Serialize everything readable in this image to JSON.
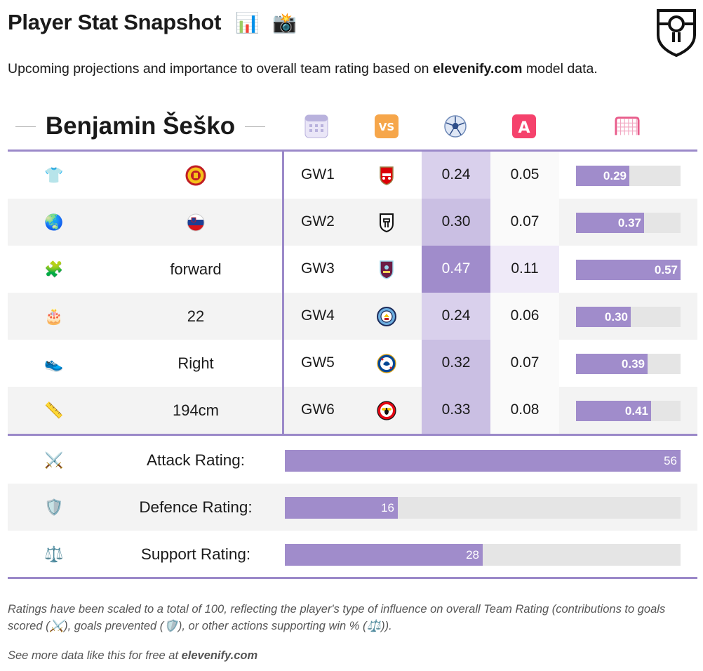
{
  "header": {
    "title": "Player Stat Snapshot",
    "title_emoji_1": "📊",
    "title_emoji_2": "📸",
    "subtitle_before": "Upcoming projections and importance to overall team rating based on ",
    "subtitle_site": "elevenify.com",
    "subtitle_after": " model data."
  },
  "player": {
    "name": "Benjamin Šeško"
  },
  "column_icons": [
    "calendar-icon",
    "versus-icon",
    "football-icon",
    "assist-icon",
    "goal-net-icon"
  ],
  "bio": [
    {
      "icon": "shirt-icon",
      "emoji": "👕",
      "value": "",
      "crest": "manchester-united-crest"
    },
    {
      "icon": "globe-icon",
      "emoji": "🌏",
      "value": "",
      "crest": "slovenia-flag"
    },
    {
      "icon": "puzzle-icon",
      "emoji": "🧩",
      "value": "forward"
    },
    {
      "icon": "cake-icon",
      "emoji": "🎂",
      "value": "22"
    },
    {
      "icon": "shoe-icon",
      "emoji": "👟",
      "value": "Right"
    },
    {
      "icon": "ruler-icon",
      "emoji": "📏",
      "value": "194cm"
    }
  ],
  "chart_data": {
    "type": "table",
    "columns": [
      "Gameweek",
      "Opponent",
      "Goal",
      "Assist",
      "Goal involvement"
    ],
    "rows": [
      {
        "gw": "GW1",
        "opponent": "arsenal-crest",
        "goal": "0.24",
        "assist": "0.05",
        "involvement": "0.29",
        "involvement_value": 0.29
      },
      {
        "gw": "GW2",
        "opponent": "fulham-crest",
        "goal": "0.30",
        "assist": "0.07",
        "involvement": "0.37",
        "involvement_value": 0.37
      },
      {
        "gw": "GW3",
        "opponent": "burnley-crest",
        "goal": "0.47",
        "assist": "0.11",
        "involvement": "0.57",
        "involvement_value": 0.57
      },
      {
        "gw": "GW4",
        "opponent": "manchester-city-crest",
        "goal": "0.24",
        "assist": "0.06",
        "involvement": "0.30",
        "involvement_value": 0.3
      },
      {
        "gw": "GW5",
        "opponent": "chelsea-crest",
        "goal": "0.32",
        "assist": "0.07",
        "involvement": "0.39",
        "involvement_value": 0.39
      },
      {
        "gw": "GW6",
        "opponent": "brentford-crest",
        "goal": "0.33",
        "assist": "0.08",
        "involvement": "0.41",
        "involvement_value": 0.41
      }
    ],
    "involvement_max": 0.57,
    "ratings": [
      {
        "icon": "crossed-swords-icon",
        "emoji": "⚔️",
        "label": "Attack Rating:",
        "value": 56
      },
      {
        "icon": "shield-icon",
        "emoji": "🛡️",
        "label": "Defence Rating:",
        "value": 16
      },
      {
        "icon": "scales-icon",
        "emoji": "⚖️",
        "label": "Support Rating:",
        "value": 28
      }
    ],
    "rating_max": 56
  },
  "colors": {
    "accent": "#9b89c9",
    "bar": "#a08ccb",
    "track": "#e5e5e5",
    "row_shade": "#f3f3f3"
  },
  "footnote": "Ratings have been scaled to a total of 100, reflecting the player's type of influence on overall Team Rating (contributions to goals scored (⚔️), goals prevented (🛡️), or other actions supporting win % (⚖️)).",
  "footer": {
    "text": "See more data like this for free at ",
    "site": "elevenify.com"
  }
}
